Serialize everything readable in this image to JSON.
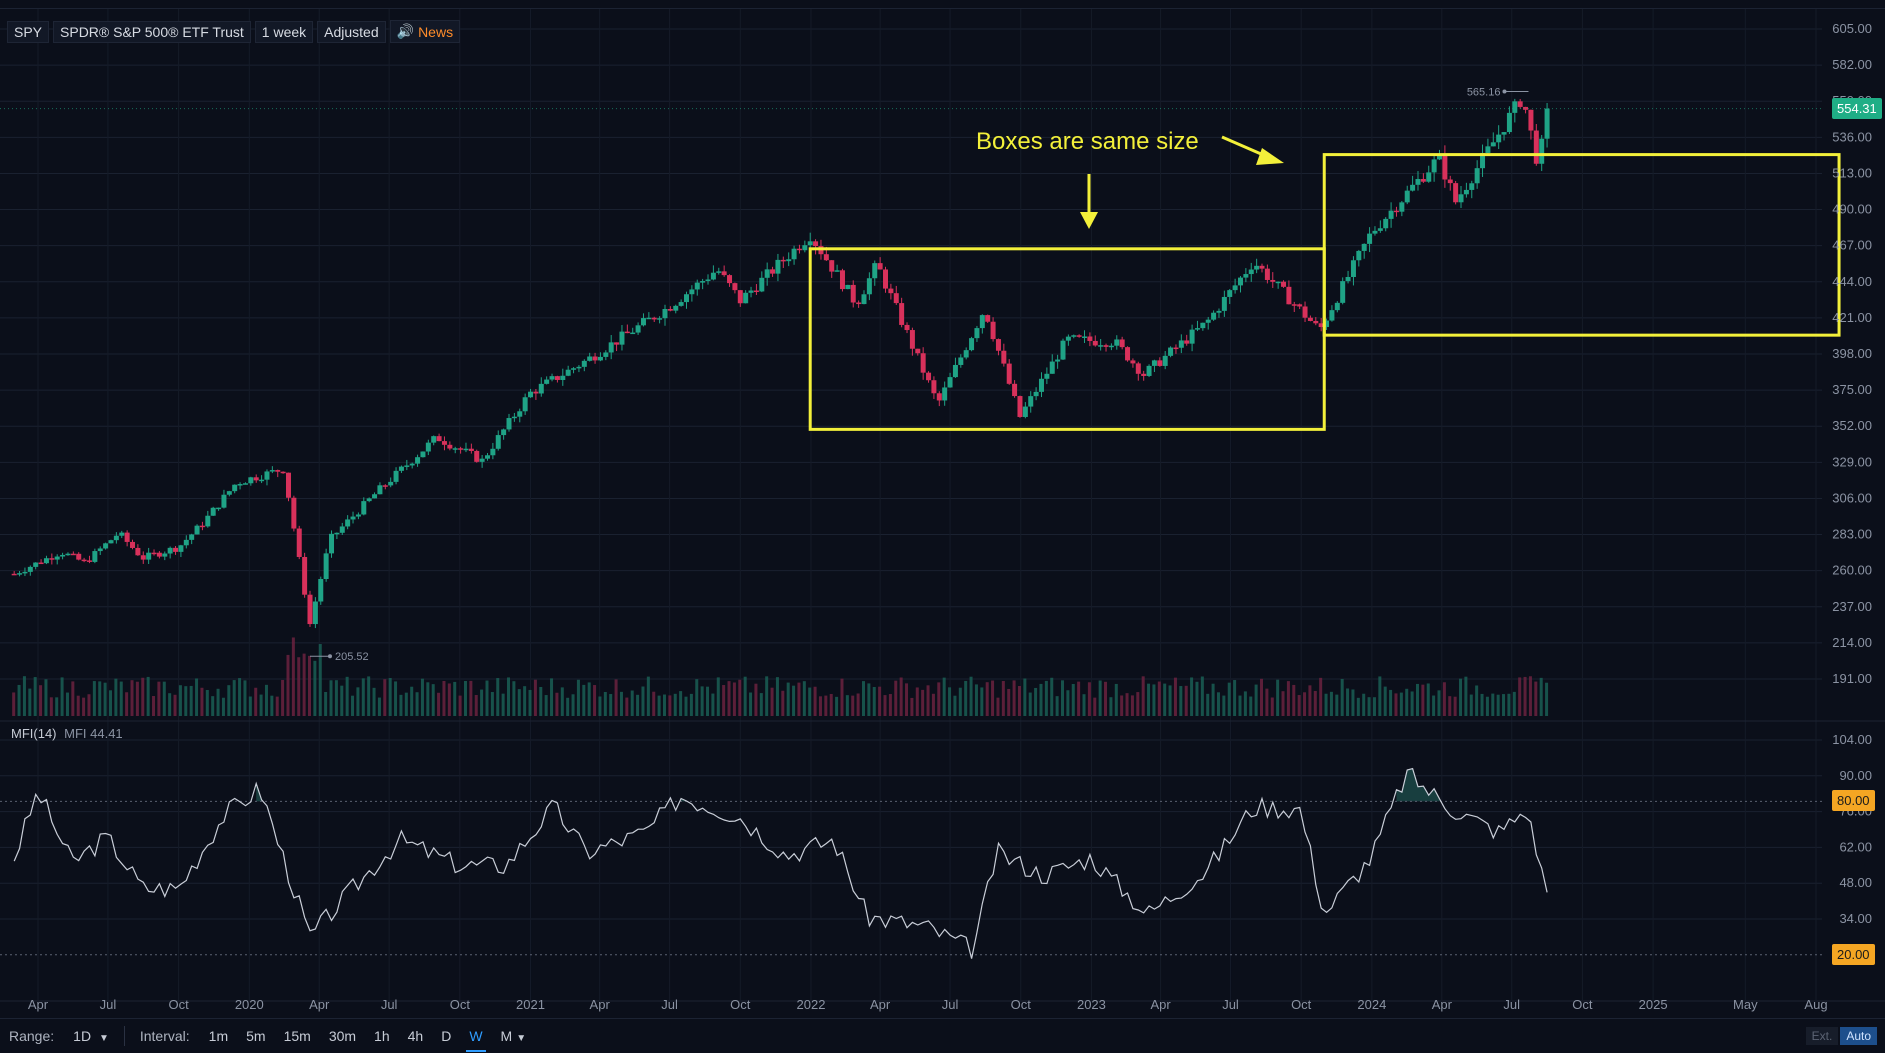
{
  "legend": {
    "symbol": "SPY",
    "name": "SPDR® S&P 500® ETF Trust",
    "interval": "1 week",
    "adjustment": "Adjusted",
    "news": "News"
  },
  "annotation": {
    "text": "Boxes are same size"
  },
  "mfi": {
    "label": "MFI(14)",
    "value_label": "MFI 44.41"
  },
  "price_axis": {
    "ticks": [
      "605.00",
      "582.00",
      "559.00",
      "536.00",
      "513.00",
      "490.00",
      "467.00",
      "444.00",
      "421.00",
      "398.00",
      "375.00",
      "352.00",
      "329.00",
      "306.00",
      "283.00",
      "260.00",
      "237.00",
      "214.00",
      "191.00"
    ],
    "current_price": "554.31",
    "current_color": "#1fae86"
  },
  "mfi_axis": {
    "ticks": [
      "104.00",
      "90.00",
      "76.00",
      "62.00",
      "48.00",
      "34.00"
    ],
    "upper_level": "80.00",
    "lower_level": "20.00",
    "level_color": "#f5a623"
  },
  "time_axis": {
    "ticks": [
      "Apr",
      "Jul",
      "Oct",
      "2020",
      "Apr",
      "Jul",
      "Oct",
      "2021",
      "Apr",
      "Jul",
      "Oct",
      "2022",
      "Apr",
      "Jul",
      "Oct",
      "2023",
      "Apr",
      "Jul",
      "Oct",
      "2024",
      "Apr",
      "Jul",
      "Oct",
      "2025",
      "May",
      "Aug"
    ]
  },
  "bottom_bar": {
    "range_label": "Range:",
    "range_value": "1D",
    "interval_label": "Interval:",
    "intervals": [
      "1m",
      "5m",
      "15m",
      "30m",
      "1h",
      "4h",
      "D",
      "W",
      "M"
    ],
    "active_interval": "W",
    "ext_label": "Ext.",
    "auto_label": "Auto"
  },
  "colors": {
    "up": "#1fa386",
    "down": "#d8315b",
    "annotation": "#f3f03a",
    "background": "#0b0f1a"
  },
  "chart_data": {
    "type": "candlestick",
    "symbol": "SPY",
    "interval": "1 week",
    "ylim": [
      180,
      610
    ],
    "high_marker": "565.16",
    "low_marker": "205.52",
    "closes": [
      {
        "date": "2019-03-01",
        "close": 258
      },
      {
        "date": "2019-05-01",
        "close": 272
      },
      {
        "date": "2019-06-01",
        "close": 265
      },
      {
        "date": "2019-07-15",
        "close": 284
      },
      {
        "date": "2019-08-15",
        "close": 268
      },
      {
        "date": "2019-10-01",
        "close": 275
      },
      {
        "date": "2019-11-01",
        "close": 290
      },
      {
        "date": "2019-12-15",
        "close": 316
      },
      {
        "date": "2020-02-15",
        "close": 325
      },
      {
        "date": "2020-03-20",
        "close": 226
      },
      {
        "date": "2020-04-15",
        "close": 280
      },
      {
        "date": "2020-06-15",
        "close": 310
      },
      {
        "date": "2020-09-01",
        "close": 345
      },
      {
        "date": "2020-10-30",
        "close": 330
      },
      {
        "date": "2020-12-31",
        "close": 373
      },
      {
        "date": "2021-03-15",
        "close": 394
      },
      {
        "date": "2021-06-30",
        "close": 428
      },
      {
        "date": "2021-09-01",
        "close": 452
      },
      {
        "date": "2021-10-01",
        "close": 432
      },
      {
        "date": "2021-12-31",
        "close": 474
      },
      {
        "date": "2022-03-01",
        "close": 430
      },
      {
        "date": "2022-03-28",
        "close": 455
      },
      {
        "date": "2022-06-15",
        "close": 366
      },
      {
        "date": "2022-08-15",
        "close": 427
      },
      {
        "date": "2022-09-30",
        "close": 358
      },
      {
        "date": "2022-11-30",
        "close": 407
      },
      {
        "date": "2023-01-31",
        "close": 406
      },
      {
        "date": "2023-03-10",
        "close": 385
      },
      {
        "date": "2023-05-31",
        "close": 418
      },
      {
        "date": "2023-07-31",
        "close": 457
      },
      {
        "date": "2023-10-25",
        "close": 413
      },
      {
        "date": "2023-12-31",
        "close": 475
      },
      {
        "date": "2024-03-28",
        "close": 523
      },
      {
        "date": "2024-04-19",
        "close": 495
      },
      {
        "date": "2024-07-15",
        "close": 562
      },
      {
        "date": "2024-08-05",
        "close": 517
      },
      {
        "date": "2024-08-16",
        "close": 554.31
      }
    ],
    "mfi_series": [
      {
        "date": "2019-03-01",
        "mfi": 58
      },
      {
        "date": "2019-04-01",
        "mfi": 84
      },
      {
        "date": "2019-05-15",
        "mfi": 56
      },
      {
        "date": "2019-06-30",
        "mfi": 66
      },
      {
        "date": "2019-08-15",
        "mfi": 46
      },
      {
        "date": "2019-10-01",
        "mfi": 46
      },
      {
        "date": "2019-11-30",
        "mfi": 75
      },
      {
        "date": "2020-01-15",
        "mfi": 85
      },
      {
        "date": "2020-03-20",
        "mfi": 27
      },
      {
        "date": "2020-05-15",
        "mfi": 46
      },
      {
        "date": "2020-07-15",
        "mfi": 65
      },
      {
        "date": "2020-09-30",
        "mfi": 55
      },
      {
        "date": "2020-11-30",
        "mfi": 55
      },
      {
        "date": "2021-01-31",
        "mfi": 78
      },
      {
        "date": "2021-03-15",
        "mfi": 60
      },
      {
        "date": "2021-05-31",
        "mfi": 68
      },
      {
        "date": "2021-07-15",
        "mfi": 82
      },
      {
        "date": "2021-09-30",
        "mfi": 74
      },
      {
        "date": "2021-11-30",
        "mfi": 59
      },
      {
        "date": "2022-01-31",
        "mfi": 65
      },
      {
        "date": "2022-03-15",
        "mfi": 35
      },
      {
        "date": "2022-05-31",
        "mfi": 31
      },
      {
        "date": "2022-07-31",
        "mfi": 22
      },
      {
        "date": "2022-08-31",
        "mfi": 60
      },
      {
        "date": "2022-10-31",
        "mfi": 51
      },
      {
        "date": "2022-12-31",
        "mfi": 58
      },
      {
        "date": "2023-03-15",
        "mfi": 36
      },
      {
        "date": "2023-05-31",
        "mfi": 53
      },
      {
        "date": "2023-07-31",
        "mfi": 78
      },
      {
        "date": "2023-09-30",
        "mfi": 77
      },
      {
        "date": "2023-10-31",
        "mfi": 36
      },
      {
        "date": "2023-12-31",
        "mfi": 58
      },
      {
        "date": "2024-02-15",
        "mfi": 91
      },
      {
        "date": "2024-04-15",
        "mfi": 77
      },
      {
        "date": "2024-06-15",
        "mfi": 68
      },
      {
        "date": "2024-07-20",
        "mfi": 77
      },
      {
        "date": "2024-08-16",
        "mfi": 44.41
      }
    ],
    "annotation_boxes": [
      {
        "from": "2021-12-31",
        "to": "2023-10-31",
        "low": 350,
        "high": 465
      },
      {
        "from": "2023-10-31",
        "to": "2025-08-31",
        "low": 410,
        "high": 525
      }
    ]
  }
}
